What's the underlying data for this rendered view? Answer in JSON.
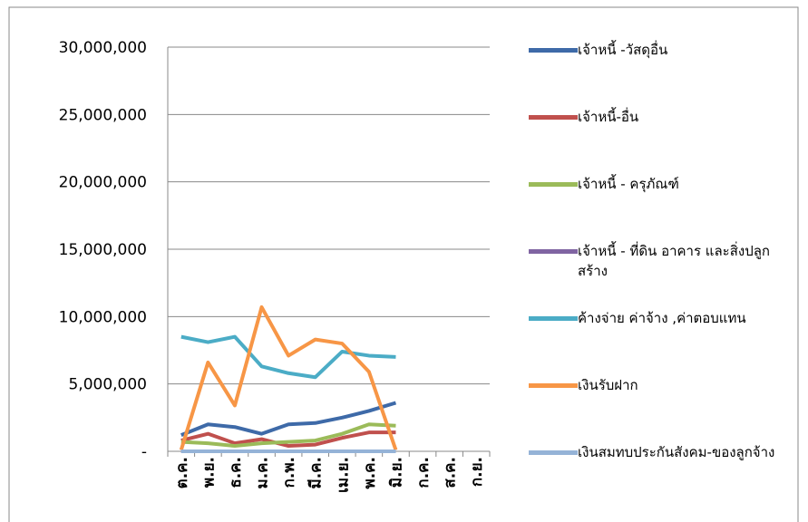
{
  "chart_data": {
    "type": "line",
    "categories": [
      "ต.ค.",
      "พ.ย.",
      "ธ.ค.",
      "ม.ค.",
      "ก.พ.",
      "มี.ค.",
      "เม.ย.",
      "พ.ค.",
      "มิ.ย.",
      "ก.ค.",
      "ส.ค.",
      "ก.ย."
    ],
    "series": [
      {
        "name": "เจ้าหนี้ -วัสดุอื่น",
        "color": "#3e6aa8",
        "values": [
          1200000,
          2000000,
          1800000,
          1300000,
          2000000,
          2100000,
          2500000,
          3000000,
          3600000,
          null,
          null,
          null
        ]
      },
      {
        "name": "เจ้าหนี้-อื่น",
        "color": "#c0504d",
        "values": [
          800000,
          1300000,
          600000,
          900000,
          400000,
          500000,
          1000000,
          1400000,
          1400000,
          null,
          null,
          null
        ]
      },
      {
        "name": "เจ้าหนี้ -  ครุภัณฑ์",
        "color": "#9bbb59",
        "values": [
          700000,
          600000,
          400000,
          600000,
          700000,
          800000,
          1300000,
          2000000,
          1900000,
          null,
          null,
          null
        ]
      },
      {
        "name": "เจ้าหนี้ -  ที่ดิน อาคาร และสิ่งปลูกสร้าง",
        "color": "#8064a2",
        "values": [
          0,
          0,
          0,
          0,
          0,
          0,
          0,
          0,
          0,
          null,
          null,
          null
        ]
      },
      {
        "name": "ค้างจ่าย ค่าจ้าง ,ค่าตอบแทน",
        "color": "#4bacc6",
        "values": [
          8500000,
          8100000,
          8500000,
          6300000,
          5800000,
          5500000,
          7400000,
          7100000,
          7000000,
          null,
          null,
          null
        ]
      },
      {
        "name": "เงินรับฝาก",
        "color": "#f79646",
        "values": [
          100000,
          6600000,
          3400000,
          10700000,
          7100000,
          8300000,
          8000000,
          5900000,
          100000,
          null,
          null,
          null
        ]
      },
      {
        "name": "เงินสมทบประกันสังคม-ของลูกจ้าง",
        "color": "#95b3d7",
        "values": [
          0,
          0,
          0,
          0,
          0,
          0,
          0,
          0,
          0,
          null,
          null,
          null
        ]
      }
    ],
    "ylim": [
      0,
      30000000
    ],
    "yticks": [
      {
        "value": 0,
        "label": "-"
      },
      {
        "value": 5000000,
        "label": "5,000,000"
      },
      {
        "value": 10000000,
        "label": "10,000,000"
      },
      {
        "value": 15000000,
        "label": "15,000,000"
      },
      {
        "value": 20000000,
        "label": "20,000,000"
      },
      {
        "value": 25000000,
        "label": "25,000,000"
      },
      {
        "value": 30000000,
        "label": "30,000,000"
      }
    ],
    "grid": true,
    "legend": "right"
  }
}
